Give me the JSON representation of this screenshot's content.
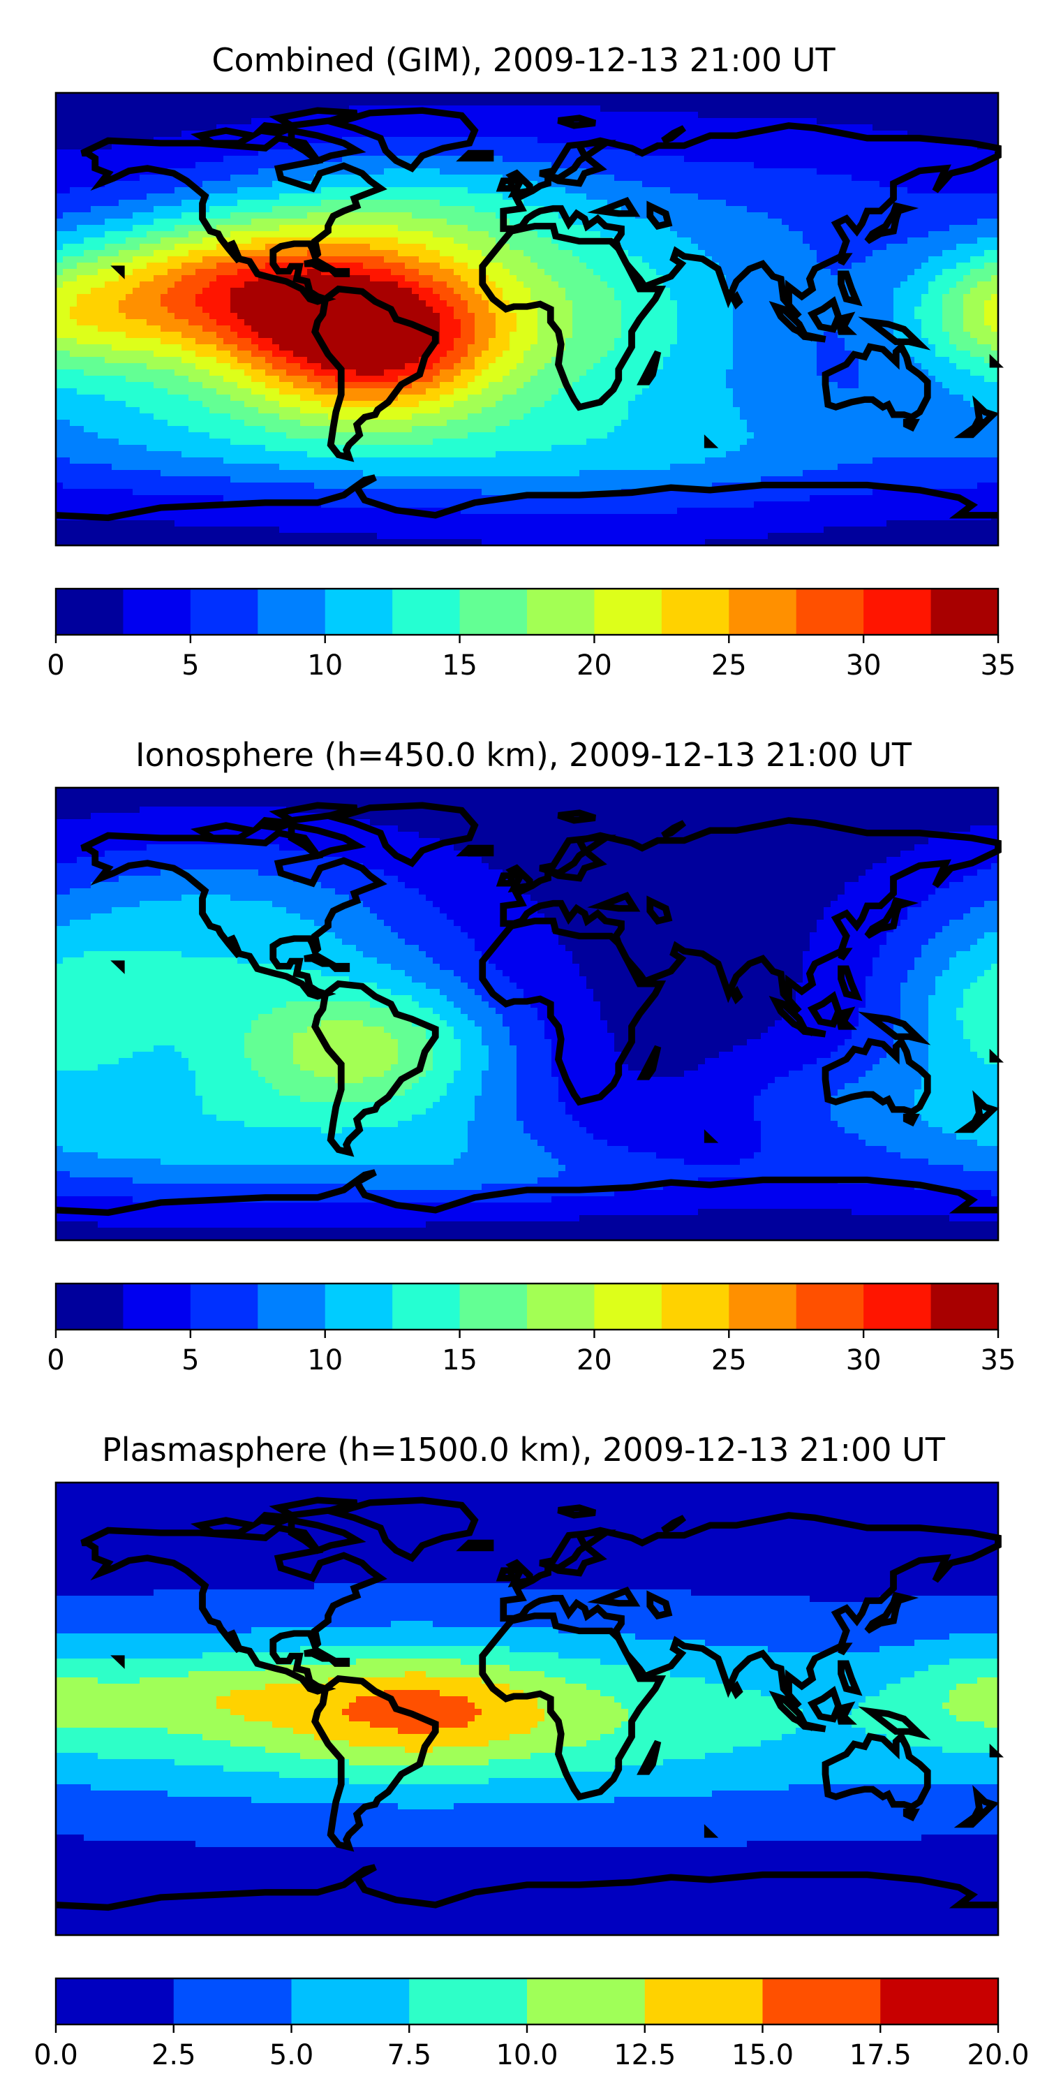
{
  "panels": [
    {
      "title": "Combined (GIM), 2009-12-13 21:00 UT",
      "colorbar": {
        "ticks": [
          "0",
          "5",
          "10",
          "15",
          "20",
          "25",
          "30",
          "35"
        ],
        "colors": [
          "#00009c",
          "#0000f0",
          "#0030ff",
          "#0080ff",
          "#00ccff",
          "#25ffd2",
          "#63ff94",
          "#a3ff54",
          "#ddff1a",
          "#ffd200",
          "#ff9000",
          "#ff5000",
          "#ff1500",
          "#a80000"
        ]
      },
      "field": {
        "base": 1,
        "blobs": [
          {
            "lon": -95,
            "lat": 8,
            "sx": 60,
            "sy": 26,
            "v": 19
          },
          {
            "lon": -58,
            "lat": -12,
            "sx": 32,
            "sy": 20,
            "v": 15
          },
          {
            "lon": -120,
            "lat": 12,
            "sx": 40,
            "sy": 18,
            "v": 8
          },
          {
            "lon": -30,
            "lat": 0,
            "sx": 60,
            "sy": 38,
            "v": 8
          },
          {
            "lon": 50,
            "lat": -5,
            "sx": 55,
            "sy": 40,
            "v": 8
          },
          {
            "lon": 178,
            "lat": 0,
            "sx": 28,
            "sy": 18,
            "v": 10
          },
          {
            "lon": -140,
            "lat": -38,
            "sx": 70,
            "sy": 18,
            "v": 5
          },
          {
            "lon": 0,
            "lat": -55,
            "sx": 180,
            "sy": 16,
            "v": 5
          },
          {
            "lon": -40,
            "lat": 48,
            "sx": 55,
            "sy": 18,
            "v": 5
          },
          {
            "lon": 120,
            "lat": 45,
            "sx": 45,
            "sy": 22,
            "v": 3
          }
        ]
      }
    },
    {
      "title": "Ionosphere  (h=450.0 km), 2009-12-13 21:00 UT",
      "colorbar": {
        "ticks": [
          "0",
          "5",
          "10",
          "15",
          "20",
          "25",
          "30",
          "35"
        ],
        "colors": [
          "#00009c",
          "#0000f0",
          "#0030ff",
          "#0080ff",
          "#00ccff",
          "#25ffd2",
          "#63ff94",
          "#a3ff54",
          "#ddff1a",
          "#ffd200",
          "#ff9000",
          "#ff5000",
          "#ff1500",
          "#a80000"
        ]
      },
      "field": {
        "base": 1,
        "blobs": [
          {
            "lon": -60,
            "lat": -15,
            "sx": 38,
            "sy": 20,
            "v": 12
          },
          {
            "lon": -120,
            "lat": -5,
            "sx": 70,
            "sy": 38,
            "v": 8
          },
          {
            "lon": -120,
            "lat": 40,
            "sx": 60,
            "sy": 22,
            "v": 6
          },
          {
            "lon": -150,
            "lat": -50,
            "sx": 60,
            "sy": 16,
            "v": 6
          },
          {
            "lon": 10,
            "lat": -65,
            "sx": 90,
            "sy": 10,
            "v": 4
          },
          {
            "lon": 178,
            "lat": 0,
            "sx": 28,
            "sy": 22,
            "v": 7
          },
          {
            "lon": 120,
            "lat": -35,
            "sx": 40,
            "sy": 15,
            "v": 4
          },
          {
            "lon": -20,
            "lat": -50,
            "sx": 40,
            "sy": 15,
            "v": 4
          }
        ]
      }
    },
    {
      "title": "Plasmasphere (h=1500.0 km), 2009-12-13 21:00 UT",
      "colorbar": {
        "ticks": [
          "0.0",
          "2.5",
          "5.0",
          "7.5",
          "10.0",
          "12.5",
          "15.0",
          "17.5",
          "20.0"
        ],
        "colors": [
          "#0000c0",
          "#0050ff",
          "#00c0ff",
          "#2effc8",
          "#a0ff58",
          "#ffd200",
          "#ff5000",
          "#c80000"
        ]
      },
      "field": {
        "base": 1.5,
        "blobs": [
          {
            "lon": 0,
            "lat": -5,
            "sx": 190,
            "sy": 26,
            "v": 6
          },
          {
            "lon": -70,
            "lat": 0,
            "sx": 100,
            "sy": 22,
            "v": 4
          },
          {
            "lon": -40,
            "lat": 0,
            "sx": 35,
            "sy": 15,
            "v": 5
          },
          {
            "lon": -120,
            "lat": 6,
            "sx": 30,
            "sy": 10,
            "v": 2.5
          },
          {
            "lon": 175,
            "lat": 6,
            "sx": 22,
            "sy": 15,
            "v": 3.5
          }
        ]
      }
    }
  ]
}
